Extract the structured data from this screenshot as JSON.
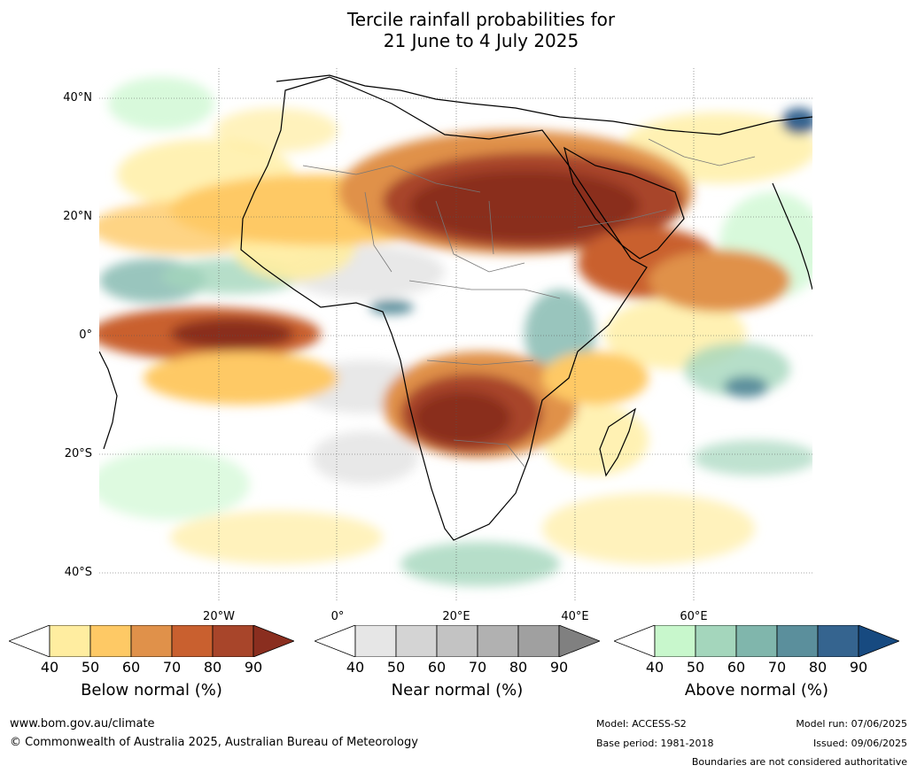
{
  "title": {
    "line1": "Tercile rainfall probabilities for",
    "line2": "21 June to 4 July 2025"
  },
  "map": {
    "lat_labels": [
      "40°N",
      "20°N",
      "0°",
      "20°S",
      "40°S"
    ],
    "lon_labels": [
      "20°W",
      "0°",
      "20°E",
      "40°E",
      "60°E"
    ]
  },
  "legend": {
    "below": {
      "title": "Below normal (%)",
      "ticks": [
        "40",
        "50",
        "60",
        "70",
        "80",
        "90"
      ],
      "colors": [
        "#ffeda0",
        "#fec965",
        "#e0914a",
        "#c9602f",
        "#a8452a",
        "#8a2e1f"
      ]
    },
    "near": {
      "title": "Near normal (%)",
      "ticks": [
        "40",
        "50",
        "60",
        "70",
        "80",
        "90"
      ],
      "colors": [
        "#e6e6e6",
        "#d4d4d4",
        "#c3c3c3",
        "#b1b1b1",
        "#a0a0a0",
        "#808080"
      ]
    },
    "above": {
      "title": "Above normal (%)",
      "ticks": [
        "40",
        "50",
        "60",
        "70",
        "80",
        "90"
      ],
      "colors": [
        "#c8f7cc",
        "#a4d6bc",
        "#80b6ac",
        "#5b8f9c",
        "#35648f",
        "#174a80"
      ]
    }
  },
  "footer": {
    "website": "www.bom.gov.au/climate",
    "copyright": "© Commonwealth of Australia 2025, Australian Bureau of Meteorology",
    "model": "Model: ACCESS-S2",
    "base_period": "Base period: 1981-2018",
    "model_run": "Model run: 07/06/2025",
    "issued": "Issued: 09/06/2025",
    "disclaimer": "Boundaries are not considered authoritative"
  }
}
